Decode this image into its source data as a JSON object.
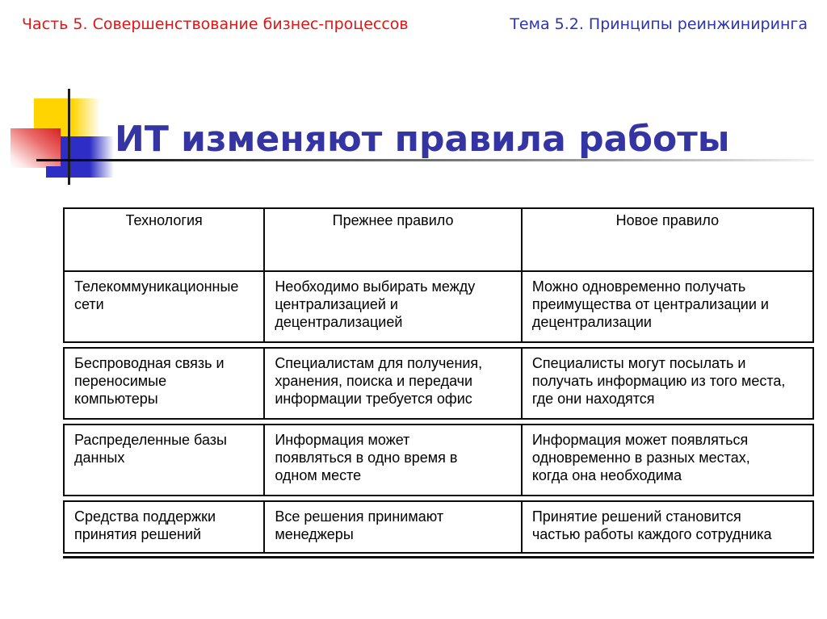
{
  "header": {
    "left": "Часть 5. Совершенствование бизнес-процессов",
    "right": "Тема 5.2. Принципы реинжиниринга"
  },
  "title": "ИТ изменяют правила работы",
  "table": {
    "columns": [
      "Технология",
      "Прежнее правило",
      "Новое правило"
    ],
    "rows": [
      [
        "Телекоммуникационные сети",
        "Необходимо выбирать между централизацией и децентрализацией",
        "Можно одновременно получать преимущества от централизации и децентрализации"
      ],
      [
        "Беспроводная связь и переносимые компьютеры",
        "Специалистам для получения, хранения, поиска и передачи информации требуется офис",
        "Специалисты могут посылать и получать информацию из того места, где они находятся"
      ],
      [
        "Распределенные базы данных",
        "Информация может появляться в одно время в одном месте",
        "Информация может появляться одновременно в разных местах, когда она необходима"
      ],
      [
        "Средства поддержки принятия решений",
        "Все решения принимают менеджеры",
        "Принятие решений становится частью работы каждого сотрудника"
      ]
    ]
  },
  "colors": {
    "header_left_text": "#e21414",
    "header_right_text": "#2b35b4",
    "title_text": "#3434a3",
    "accent_yellow": "#ffd400",
    "accent_red": "#d92020",
    "accent_blue": "#2e2ec6",
    "table_border": "#0a0a0a"
  }
}
